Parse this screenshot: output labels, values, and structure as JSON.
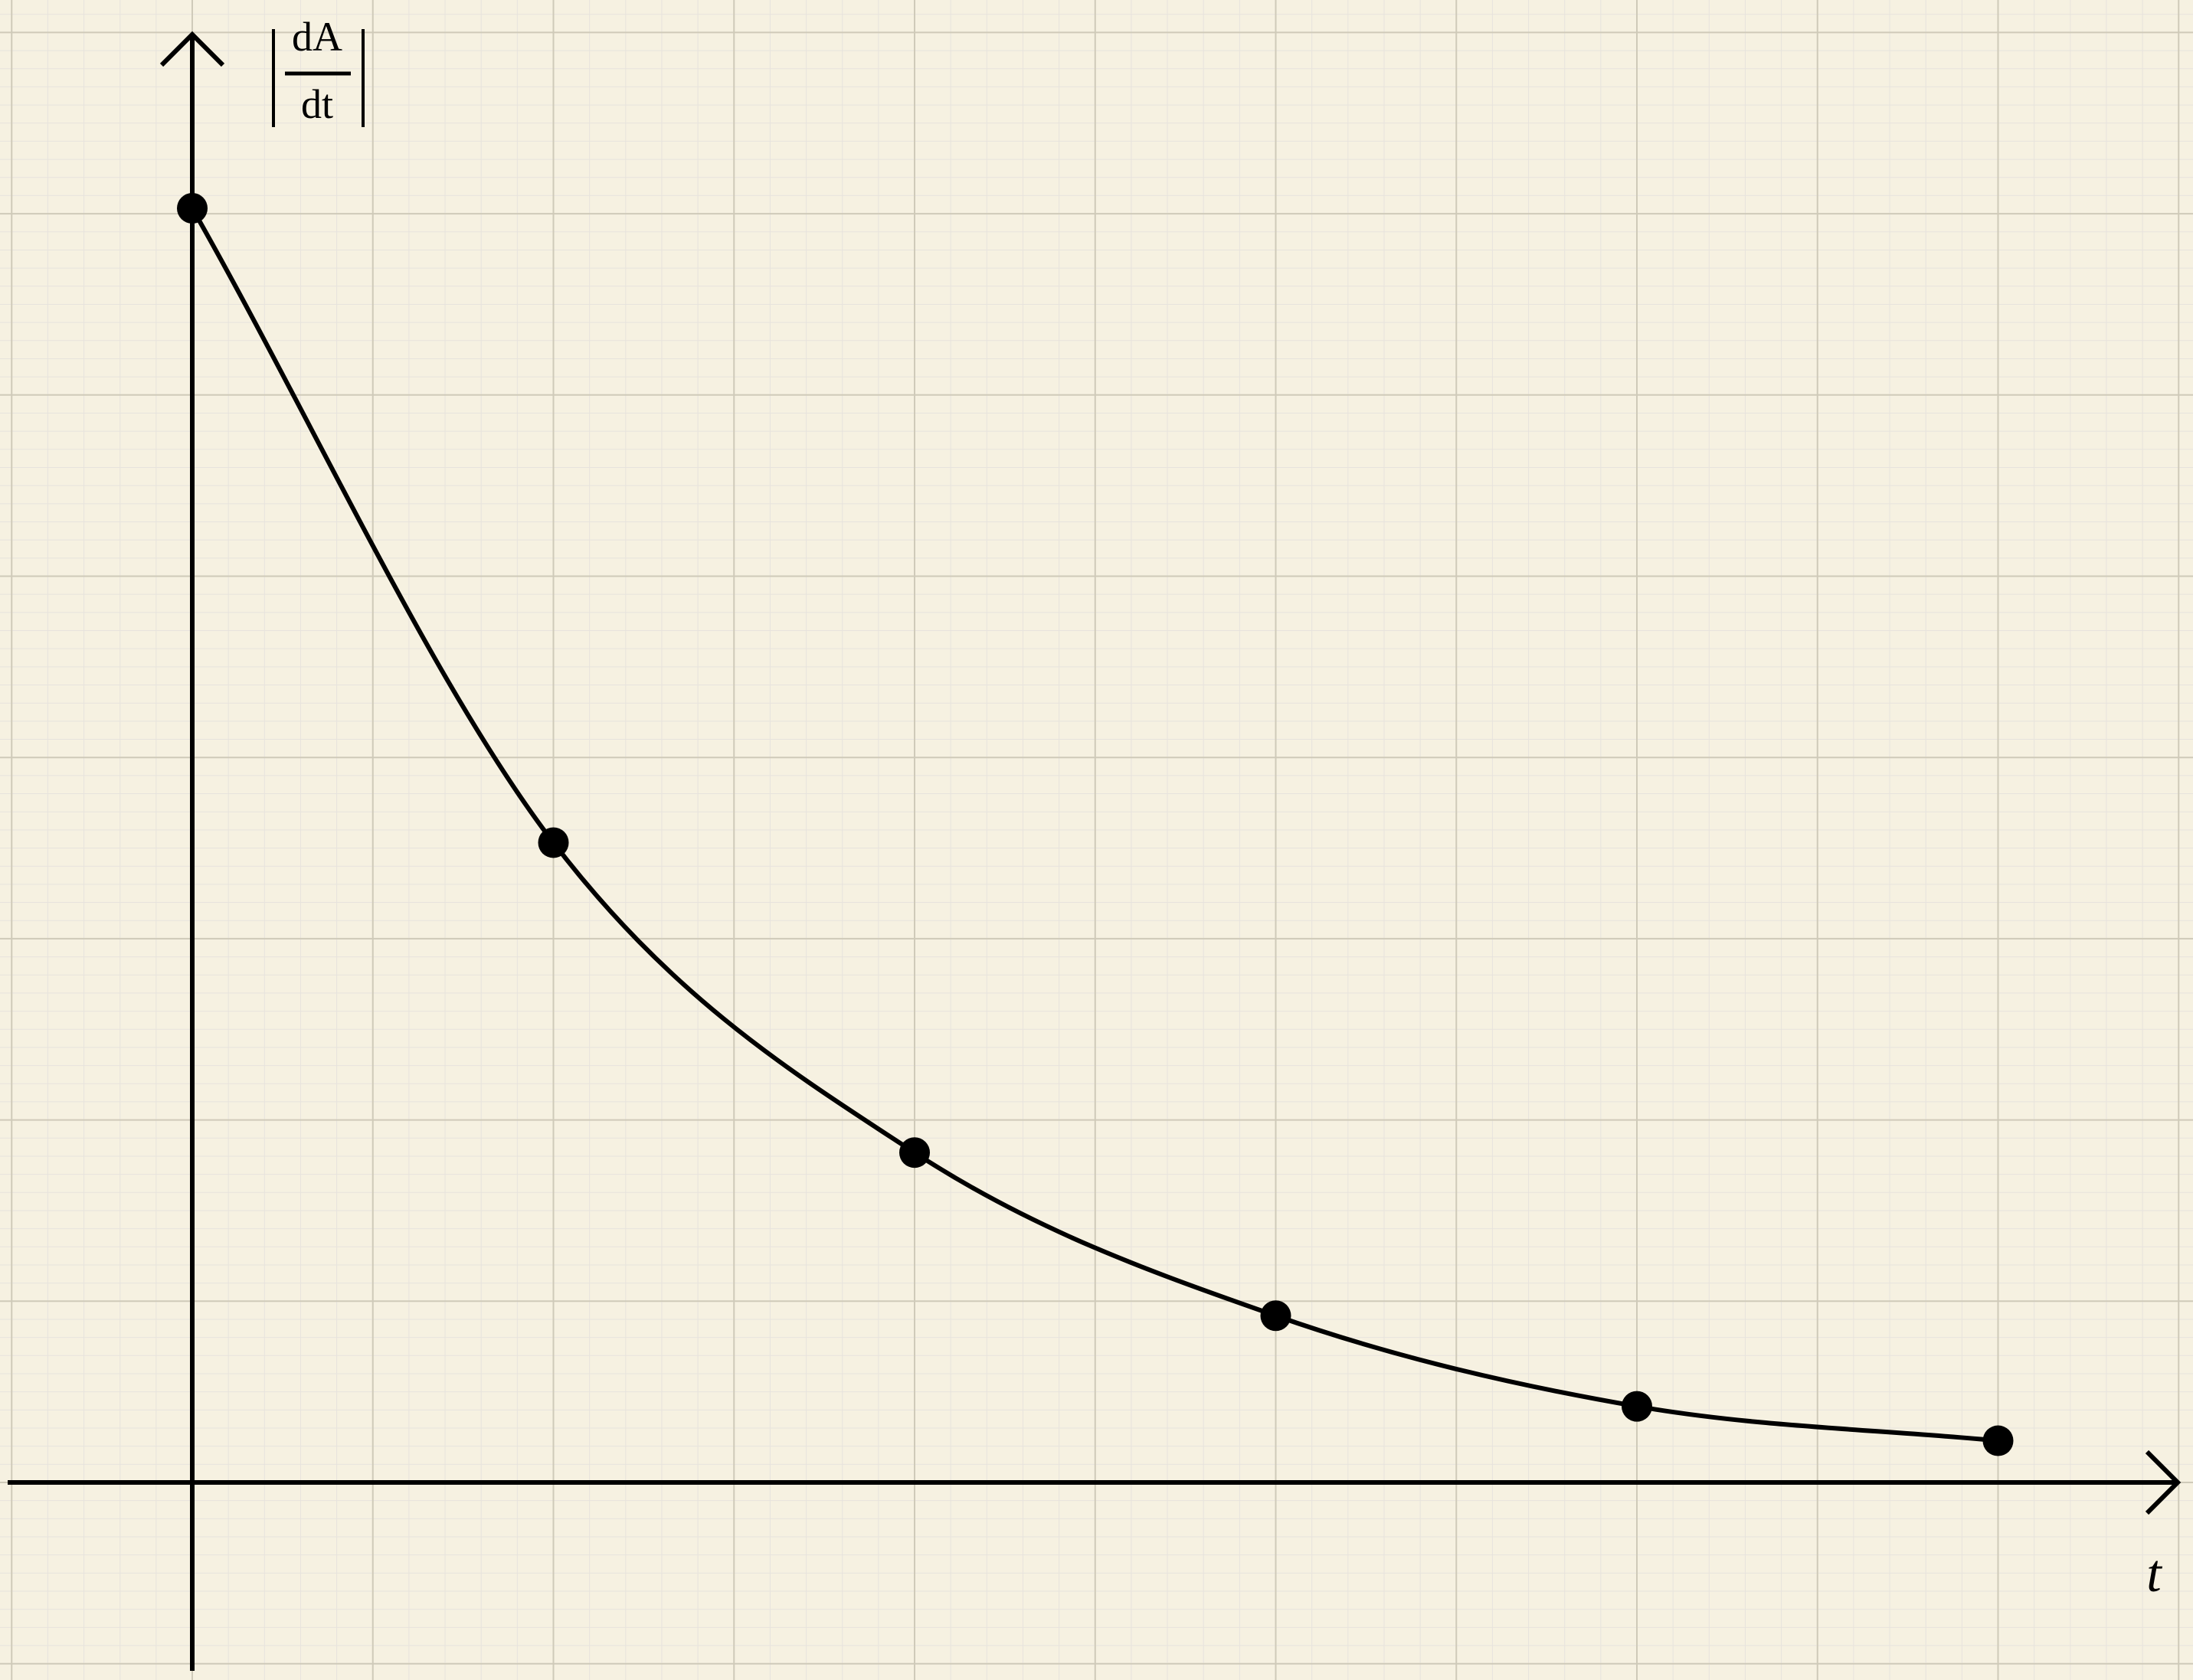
{
  "chart_data": {
    "type": "line",
    "title": "",
    "xlabel": "t",
    "ylabel": {
      "numerator": "dA",
      "denominator": "dt",
      "bars": "absolute-value"
    },
    "x_ticks_labeled": false,
    "y_ticks_labeled": false,
    "grid": true,
    "xlim": [
      -0.5,
      5.5
    ],
    "ylim": [
      -0.5,
      8.5
    ],
    "series": [
      {
        "points": [
          {
            "x": 0,
            "y": 7.03
          },
          {
            "x": 1,
            "y": 3.53
          },
          {
            "x": 2,
            "y": 1.82
          },
          {
            "x": 3,
            "y": 0.92
          },
          {
            "x": 4,
            "y": 0.42
          },
          {
            "x": 5,
            "y": 0.23
          }
        ],
        "curve_end_x": 5,
        "markers": true,
        "color": "#000000"
      }
    ]
  },
  "colors": {
    "background": "#f6f1e1",
    "major_grid": "#cfcab9",
    "minor_grid": "#e7e3dd",
    "ink": "#000000"
  }
}
